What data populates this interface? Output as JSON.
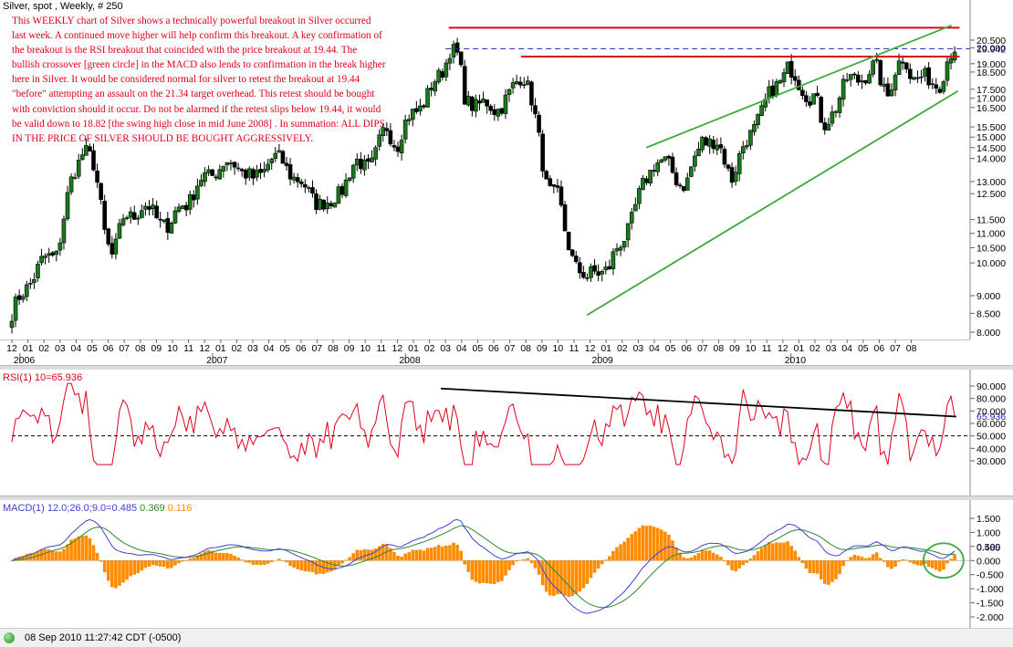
{
  "header": {
    "title": "Silver, spot , Weekly, # 250"
  },
  "annotation": {
    "text": "This WEEKLY chart of Silver shows a technically powerful breakout in Silver occurred last week.  A continued move higher will help confirm this breakout.  A key confirmation of the breakout is the RSI breakout that coincided with the price breakout at 19.44.  The bullish crossover [green circle] in the MACD also lends to confirmation in the break higher here in Silver.  It would be considered normal for silver to retest the breakout at 19.44 \"before\" attempting an assault on the 21.34 target overhead.  This retest should be bought with conviction should it occur.  Do not be alarmed if the retest slips below 19.44, it would be valid down to 18.82 [the swing high close in mid June 2008] .  In summation: ALL DIPS IN THE PRICE OF SILVER SHOULD BE BOUGHT AGGRESSIVELY."
  },
  "rsi_panel": {
    "label": "RSI(1) 10=65.936"
  },
  "macd_panel": {
    "label_prefix": "MACD(1) 12.0;26.0;9.0=",
    "label_macd": "0.485",
    "label_signal": "0.369",
    "label_hist": "0.116"
  },
  "status_bar": {
    "text": "08 Sep 2010 11:27:42  CDT (-0500)"
  },
  "colors": {
    "up_candle": "#1a7a1a",
    "down_candle": "#000000",
    "resistance": "#e0001a",
    "channel": "#3aaa3a",
    "rsi_line": "#e0001a",
    "macd_line": "#4040d0",
    "signal_line": "#2a8a2a",
    "histogram": "#ff8c00",
    "annotation": "#e0001a"
  },
  "chart_data": [
    {
      "type": "candlestick",
      "title": "Silver, spot , Weekly, # 250",
      "x_tick_labels": [
        "12",
        "01",
        "02",
        "03",
        "04",
        "05",
        "06",
        "07",
        "08",
        "09",
        "10",
        "11",
        "12",
        "01",
        "02",
        "03",
        "04",
        "05",
        "06",
        "07",
        "08",
        "09",
        "10",
        "11",
        "12",
        "01",
        "02",
        "03",
        "04",
        "05",
        "06",
        "07",
        "08",
        "09",
        "10",
        "11",
        "12",
        "01",
        "02",
        "03",
        "04",
        "05",
        "06",
        "07",
        "08",
        "09",
        "10",
        "11",
        "12",
        "01",
        "02",
        "03",
        "04",
        "05",
        "06",
        "07",
        "08"
      ],
      "year_labels": [
        {
          "label": "2006",
          "month_index": 1
        },
        {
          "label": "2007",
          "month_index": 13
        },
        {
          "label": "2008",
          "month_index": 25
        },
        {
          "label": "2009",
          "month_index": 37
        },
        {
          "label": "2010",
          "month_index": 49
        }
      ],
      "y_tick_labels": [
        "8.000",
        "8.500",
        "9.000",
        "10.000",
        "10.500",
        "11.000",
        "11.500",
        "12.500",
        "13.000",
        "14.000",
        "14.500",
        "15.000",
        "15.500",
        "16.500",
        "17.000",
        "17.500",
        "18.500",
        "19.000",
        "20.000",
        "20.500"
      ],
      "ylim": [
        8.0,
        21.5
      ],
      "y_scale": "log",
      "anchors": [
        {
          "m": 0.0,
          "v": 8.5
        },
        {
          "m": 0.6,
          "v": 8.8
        },
        {
          "m": 1.8,
          "v": 9.9
        },
        {
          "m": 2.8,
          "v": 10.6
        },
        {
          "m": 3.6,
          "v": 12.8
        },
        {
          "m": 4.5,
          "v": 14.4
        },
        {
          "m": 5.0,
          "v": 13.6
        },
        {
          "m": 5.8,
          "v": 11.0
        },
        {
          "m": 6.3,
          "v": 10.4
        },
        {
          "m": 7.0,
          "v": 11.8
        },
        {
          "m": 8.0,
          "v": 11.9
        },
        {
          "m": 9.0,
          "v": 11.4
        },
        {
          "m": 9.8,
          "v": 11.2
        },
        {
          "m": 10.6,
          "v": 12.4
        },
        {
          "m": 11.2,
          "v": 12.6
        },
        {
          "m": 12.0,
          "v": 13.1
        },
        {
          "m": 13.0,
          "v": 13.3
        },
        {
          "m": 14.0,
          "v": 14.0
        },
        {
          "m": 15.0,
          "v": 13.2
        },
        {
          "m": 16.0,
          "v": 13.8
        },
        {
          "m": 17.0,
          "v": 13.5
        },
        {
          "m": 18.0,
          "v": 13.0
        },
        {
          "m": 19.0,
          "v": 12.5
        },
        {
          "m": 19.8,
          "v": 11.9
        },
        {
          "m": 20.5,
          "v": 12.5
        },
        {
          "m": 21.5,
          "v": 13.7
        },
        {
          "m": 22.5,
          "v": 14.2
        },
        {
          "m": 23.3,
          "v": 15.6
        },
        {
          "m": 24.0,
          "v": 14.5
        },
        {
          "m": 25.0,
          "v": 16.0
        },
        {
          "m": 25.8,
          "v": 17.2
        },
        {
          "m": 26.6,
          "v": 18.6
        },
        {
          "m": 27.3,
          "v": 20.2
        },
        {
          "m": 27.8,
          "v": 19.0
        },
        {
          "m": 28.2,
          "v": 16.7
        },
        {
          "m": 29.0,
          "v": 16.4
        },
        {
          "m": 30.0,
          "v": 16.8
        },
        {
          "m": 31.0,
          "v": 17.3
        },
        {
          "m": 31.8,
          "v": 18.4
        },
        {
          "m": 32.2,
          "v": 17.2
        },
        {
          "m": 32.7,
          "v": 15.0
        },
        {
          "m": 33.2,
          "v": 13.0
        },
        {
          "m": 34.0,
          "v": 12.6
        },
        {
          "m": 34.5,
          "v": 11.0
        },
        {
          "m": 35.0,
          "v": 10.2
        },
        {
          "m": 35.8,
          "v": 9.3
        },
        {
          "m": 36.5,
          "v": 9.6
        },
        {
          "m": 37.2,
          "v": 9.8
        },
        {
          "m": 38.0,
          "v": 11.0
        },
        {
          "m": 39.0,
          "v": 12.3
        },
        {
          "m": 40.0,
          "v": 13.7
        },
        {
          "m": 41.0,
          "v": 13.4
        },
        {
          "m": 42.0,
          "v": 13.1
        },
        {
          "m": 43.0,
          "v": 15.1
        },
        {
          "m": 44.0,
          "v": 14.2
        },
        {
          "m": 44.8,
          "v": 13.1
        },
        {
          "m": 45.6,
          "v": 14.7
        },
        {
          "m": 46.5,
          "v": 16.4
        },
        {
          "m": 47.5,
          "v": 17.3
        },
        {
          "m": 48.3,
          "v": 18.5
        },
        {
          "m": 49.0,
          "v": 17.6
        },
        {
          "m": 50.0,
          "v": 17.6
        },
        {
          "m": 50.5,
          "v": 15.5
        },
        {
          "m": 51.0,
          "v": 16.2
        },
        {
          "m": 52.0,
          "v": 17.5
        },
        {
          "m": 53.0,
          "v": 18.3
        },
        {
          "m": 53.8,
          "v": 19.1
        },
        {
          "m": 54.5,
          "v": 17.5
        },
        {
          "m": 55.0,
          "v": 18.4
        },
        {
          "m": 55.6,
          "v": 19.0
        },
        {
          "m": 56.0,
          "v": 18.0
        },
        {
          "m": 56.5,
          "v": 17.9
        },
        {
          "m": 57.0,
          "v": 18.0
        },
        {
          "m": 57.8,
          "v": 18.4
        },
        {
          "m": 58.3,
          "v": 19.5
        },
        {
          "m": 58.7,
          "v": 19.9
        }
      ],
      "resistance_levels": [
        {
          "price": 21.34,
          "from_month": 27.2,
          "to_month": 59.0
        },
        {
          "price": 19.44,
          "from_month": 31.7,
          "to_month": 59.0
        }
      ],
      "last_price": {
        "value": 19.942,
        "label": "19.942",
        "from_month": 27.0
      },
      "channel_lines": [
        {
          "from": {
            "m": 35.8,
            "v": 8.45
          },
          "to": {
            "m": 58.9,
            "v": 17.4
          }
        },
        {
          "from": {
            "m": 39.5,
            "v": 14.5
          },
          "to": {
            "m": 58.5,
            "v": 21.5
          }
        }
      ]
    },
    {
      "type": "line",
      "title": "RSI(1) 10=65.936",
      "y_tick_labels": [
        "30.000",
        "40.000",
        "50.000",
        "60.000",
        "70.000",
        "80.000",
        "90.000"
      ],
      "ylim": [
        25,
        98
      ],
      "current": {
        "value": 65.936,
        "label": "65.936"
      },
      "reference_line": 50,
      "trendline": {
        "from": {
          "m": 26.7,
          "v": 88
        },
        "to": {
          "m": 58.8,
          "v": 65.5
        }
      }
    },
    {
      "type": "line+bar",
      "title": "MACD(1) 12.0;26.0;9.0=0.485 0.369 0.116",
      "y_tick_labels": [
        "-2.000",
        "-1.500",
        "-1.000",
        "-0.500",
        "0.000",
        "0.500",
        "1.000",
        "1.500"
      ],
      "ylim": [
        -2.1,
        1.8
      ],
      "current": {
        "macd": 0.485,
        "signal": 0.369,
        "histogram": 0.116,
        "label": "0.485"
      },
      "series": [
        {
          "name": "MACD",
          "values_note": "derived from price"
        },
        {
          "name": "Signal",
          "values_note": "9-period EMA of MACD"
        },
        {
          "name": "Histogram",
          "values_note": "MACD minus signal"
        }
      ],
      "highlight": {
        "m": 58.0,
        "v": 0.0
      }
    }
  ]
}
